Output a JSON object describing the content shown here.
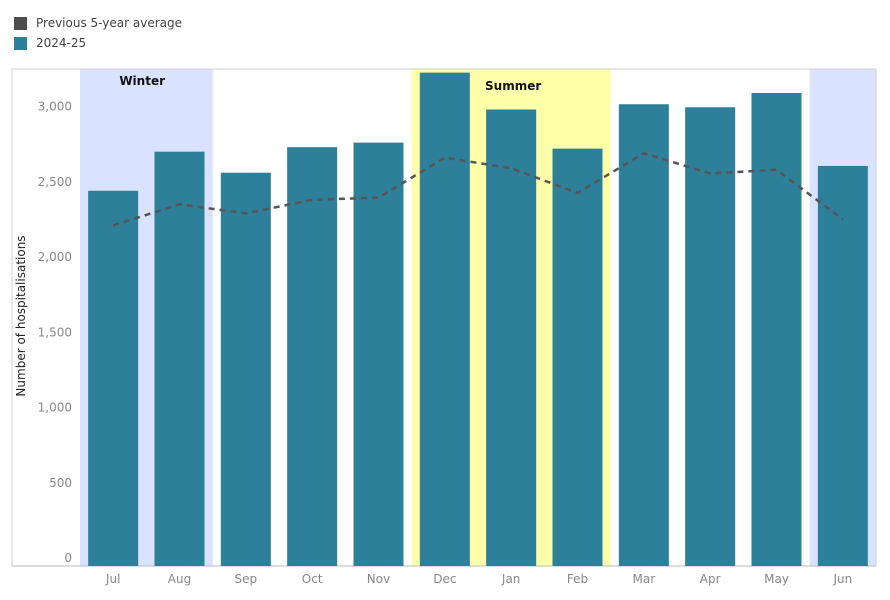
{
  "chart_data": {
    "type": "bar",
    "title": "",
    "xlabel": "",
    "ylabel": "Number of hospitalisations",
    "ylim": [
      0,
      3350
    ],
    "yticks": [
      0,
      500,
      1000,
      1500,
      2000,
      2500,
      3000
    ],
    "ytick_labels": [
      "0",
      "500",
      "1,000",
      "1,500",
      "2,000",
      "2,500",
      "3,000"
    ],
    "categories": [
      "Jul",
      "Aug",
      "Sep",
      "Oct",
      "Nov",
      "Dec",
      "Jan",
      "Feb",
      "Mar",
      "Apr",
      "May",
      "Jun"
    ],
    "series": [
      {
        "name": "2024-25",
        "type": "bar",
        "color": "#2e7f99",
        "values": [
          2440,
          2700,
          2560,
          2730,
          2760,
          3225,
          2980,
          2720,
          3015,
          2995,
          3090,
          2605
        ]
      },
      {
        "name": "Previous 5-year average",
        "type": "line",
        "style": "dashed",
        "color": "#555555",
        "values": [
          2210,
          2350,
          2290,
          2380,
          2395,
          2660,
          2590,
          2425,
          2690,
          2555,
          2580,
          2250
        ]
      }
    ],
    "legend": {
      "position": "top-left",
      "entries": [
        {
          "label": "Previous 5-year average",
          "color": "#4d4d4d"
        },
        {
          "label": "2024-25",
          "color": "#2e7f99"
        }
      ]
    },
    "seasons": [
      {
        "label": "Winter",
        "color": "#d9e3ff",
        "months": [
          "Jul",
          "Aug",
          "Jun"
        ],
        "label_month": "Jul"
      },
      {
        "label": "Summer",
        "color": "#ffffaa",
        "months": [
          "Dec",
          "Jan",
          "Feb"
        ],
        "label_month": "Jan"
      }
    ],
    "grid": false
  }
}
